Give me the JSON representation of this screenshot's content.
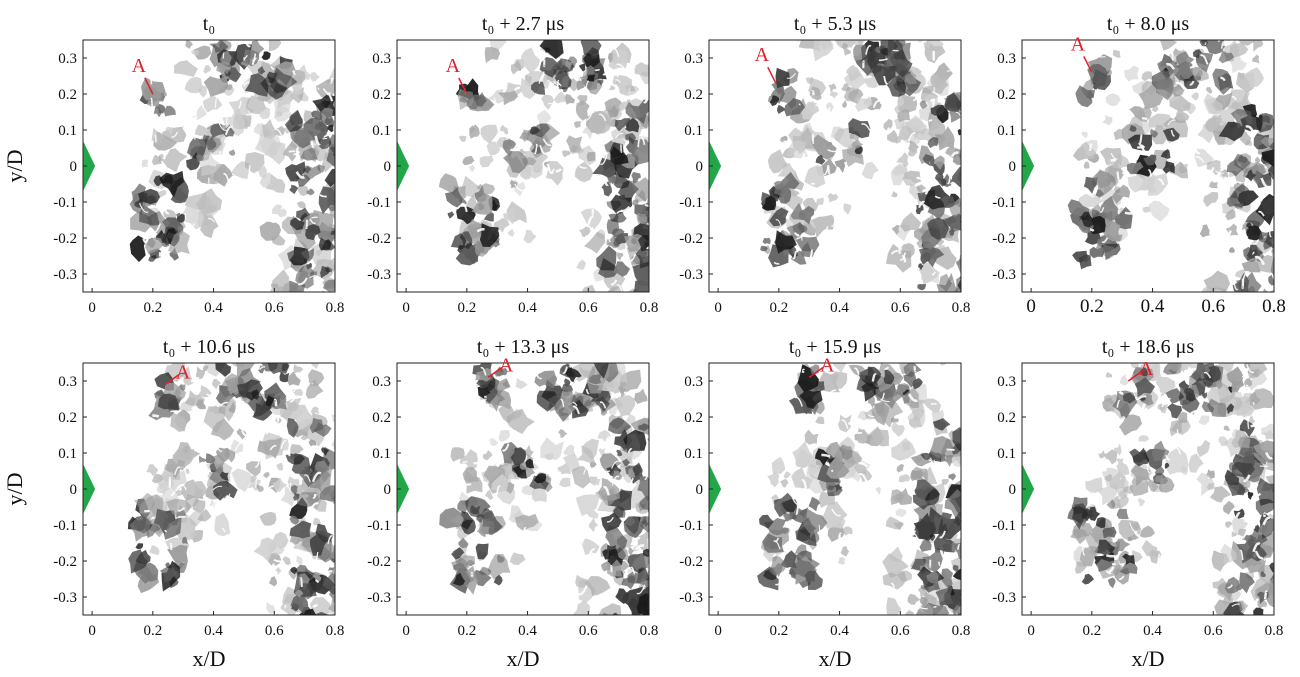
{
  "figure": {
    "ylabel": "y/D",
    "xlabel": "x/D",
    "marker_label": "A",
    "colors": {
      "marker": "#e0202a",
      "body": "#22a748",
      "background_gray": "#c9c9c9",
      "ink": "#111111"
    }
  },
  "chart_data": [
    {
      "type": "image",
      "title": "t₀",
      "xlim": [
        -0.03,
        0.8
      ],
      "ylim": [
        -0.35,
        0.35
      ],
      "xticks": [
        "0",
        "0.2",
        "0.4",
        "0.6",
        "0.8"
      ],
      "yticks": [
        "0.3",
        "0.2",
        "0.1",
        "0",
        "-0.1",
        "-0.2",
        "-0.3"
      ],
      "annotation": {
        "text": "A",
        "x": 0.2,
        "y": 0.2
      }
    },
    {
      "type": "image",
      "title": "t₀ + 2.7 μs",
      "xlim": [
        -0.03,
        0.8
      ],
      "ylim": [
        -0.35,
        0.35
      ],
      "xticks": [
        "0",
        "0.2",
        "0.4",
        "0.6",
        "0.8"
      ],
      "yticks": [
        "0.3",
        "0.2",
        "0.1",
        "0",
        "-0.1",
        "-0.2",
        "-0.3"
      ],
      "annotation": {
        "text": "A",
        "x": 0.2,
        "y": 0.2
      }
    },
    {
      "type": "image",
      "title": "t₀ + 5.3 μs",
      "xlim": [
        -0.03,
        0.8
      ],
      "ylim": [
        -0.35,
        0.35
      ],
      "xticks": [
        "0",
        "0.2",
        "0.4",
        "0.6",
        "0.8"
      ],
      "yticks": [
        "0.3",
        "0.2",
        "0.1",
        "0",
        "-0.1",
        "-0.2",
        "-0.3"
      ],
      "annotation": {
        "text": "A",
        "x": 0.19,
        "y": 0.23
      }
    },
    {
      "type": "image",
      "title": "t₀ + 8.0 μs",
      "xlim": [
        -0.03,
        0.8
      ],
      "ylim": [
        -0.35,
        0.35
      ],
      "xticks": [
        "0",
        "0.2",
        "0.4",
        "0.6",
        "0.8"
      ],
      "yticks": [
        "0.3",
        "0.2",
        "0.1",
        "0",
        "-0.1",
        "-0.2",
        "-0.3"
      ],
      "annotation": {
        "text": "A",
        "x": 0.2,
        "y": 0.26
      }
    },
    {
      "type": "image",
      "title": "t₀ + 10.6 μs",
      "xlim": [
        -0.03,
        0.8
      ],
      "ylim": [
        -0.35,
        0.35
      ],
      "xticks": [
        "0",
        "0.2",
        "0.4",
        "0.6",
        "0.8"
      ],
      "yticks": [
        "0.3",
        "0.2",
        "0.1",
        "0",
        "-0.1",
        "-0.2",
        "-0.3"
      ],
      "annotation": {
        "text": "A",
        "x": 0.24,
        "y": 0.29
      }
    },
    {
      "type": "image",
      "title": "t₀ + 13.3 μs",
      "xlim": [
        -0.03,
        0.8
      ],
      "ylim": [
        -0.35,
        0.35
      ],
      "xticks": [
        "0",
        "0.2",
        "0.4",
        "0.6",
        "0.8"
      ],
      "yticks": [
        "0.3",
        "0.2",
        "0.1",
        "0",
        "-0.1",
        "-0.2",
        "-0.3"
      ],
      "annotation": {
        "text": "A",
        "x": 0.27,
        "y": 0.31
      }
    },
    {
      "type": "image",
      "title": "t₀ + 15.9 μs",
      "xlim": [
        -0.03,
        0.8
      ],
      "ylim": [
        -0.35,
        0.35
      ],
      "xticks": [
        "0",
        "0.2",
        "0.4",
        "0.6",
        "0.8"
      ],
      "yticks": [
        "0.3",
        "0.2",
        "0.1",
        "0",
        "-0.1",
        "-0.2",
        "-0.3"
      ],
      "annotation": {
        "text": "A",
        "x": 0.3,
        "y": 0.31
      }
    },
    {
      "type": "image",
      "title": "t₀ + 18.6 μs",
      "xlim": [
        -0.03,
        0.8
      ],
      "ylim": [
        -0.35,
        0.35
      ],
      "xticks": [
        "0",
        "0.2",
        "0.4",
        "0.6",
        "0.8"
      ],
      "yticks": [
        "0.3",
        "0.2",
        "0.1",
        "0",
        "-0.1",
        "-0.2",
        "-0.3"
      ],
      "annotation": {
        "text": "A",
        "x": 0.32,
        "y": 0.3
      }
    }
  ]
}
